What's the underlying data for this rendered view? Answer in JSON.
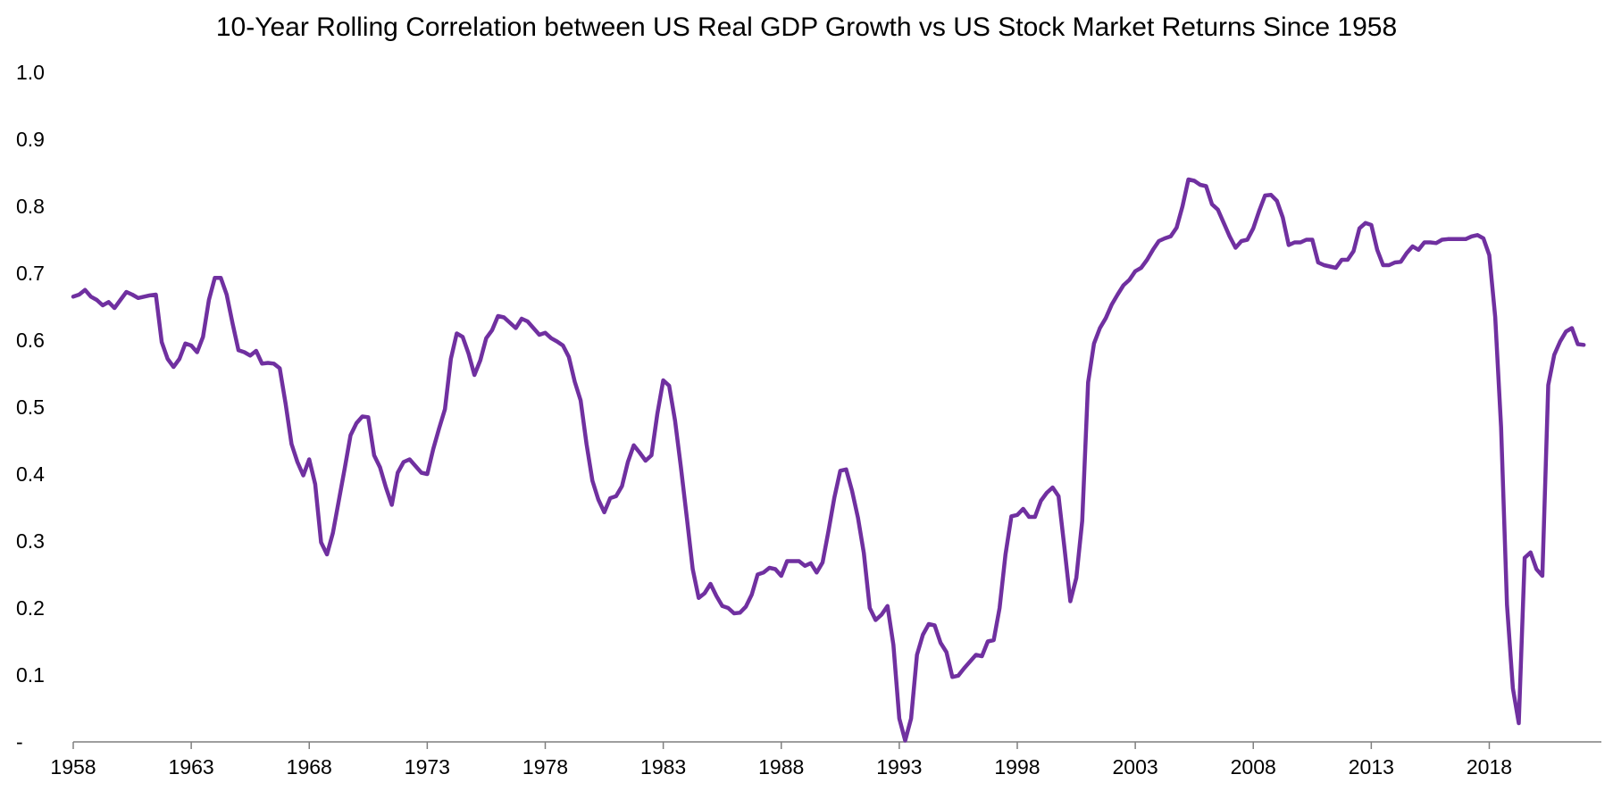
{
  "chart_data": {
    "type": "line",
    "title": "10-Year Rolling Correlation between US Real GDP Growth vs US Stock Market Returns Since 1958",
    "xlabel": "",
    "ylabel": "",
    "xlim": [
      1958,
      2022.75
    ],
    "ylim": [
      0,
      1
    ],
    "y_ticks": [
      {
        "value": 0,
        "label": "-"
      },
      {
        "value": 0.1,
        "label": "0.1"
      },
      {
        "value": 0.2,
        "label": "0.2"
      },
      {
        "value": 0.3,
        "label": "0.3"
      },
      {
        "value": 0.4,
        "label": "0.4"
      },
      {
        "value": 0.5,
        "label": "0.5"
      },
      {
        "value": 0.6,
        "label": "0.6"
      },
      {
        "value": 0.7,
        "label": "0.7"
      },
      {
        "value": 0.8,
        "label": "0.8"
      },
      {
        "value": 0.9,
        "label": "0.9"
      },
      {
        "value": 1.0,
        "label": "1.0"
      }
    ],
    "x_ticks": [
      {
        "value": 1958,
        "label": "1958"
      },
      {
        "value": 1963,
        "label": "1963"
      },
      {
        "value": 1968,
        "label": "1968"
      },
      {
        "value": 1973,
        "label": "1973"
      },
      {
        "value": 1978,
        "label": "1978"
      },
      {
        "value": 1983,
        "label": "1983"
      },
      {
        "value": 1988,
        "label": "1988"
      },
      {
        "value": 1993,
        "label": "1993"
      },
      {
        "value": 1998,
        "label": "1998"
      },
      {
        "value": 2003,
        "label": "2003"
      },
      {
        "value": 2008,
        "label": "2008"
      },
      {
        "value": 2013,
        "label": "2013"
      },
      {
        "value": 2018,
        "label": "2018"
      }
    ],
    "grid": false,
    "legend": "none",
    "series": [
      {
        "color": "#7030A0",
        "points": [
          [
            1958.0,
            0.665
          ],
          [
            1958.25,
            0.668
          ],
          [
            1958.5,
            0.675
          ],
          [
            1958.75,
            0.665
          ],
          [
            1959.0,
            0.66
          ],
          [
            1959.25,
            0.652
          ],
          [
            1959.5,
            0.657
          ],
          [
            1959.75,
            0.648
          ],
          [
            1960.0,
            0.66
          ],
          [
            1960.25,
            0.672
          ],
          [
            1960.5,
            0.668
          ],
          [
            1960.75,
            0.663
          ],
          [
            1961.0,
            0.665
          ],
          [
            1961.25,
            0.667
          ],
          [
            1961.5,
            0.668
          ],
          [
            1961.75,
            0.597
          ],
          [
            1962.0,
            0.572
          ],
          [
            1962.25,
            0.56
          ],
          [
            1962.5,
            0.572
          ],
          [
            1962.75,
            0.595
          ],
          [
            1963.0,
            0.592
          ],
          [
            1963.25,
            0.582
          ],
          [
            1963.5,
            0.605
          ],
          [
            1963.75,
            0.66
          ],
          [
            1964.0,
            0.693
          ],
          [
            1964.25,
            0.693
          ],
          [
            1964.5,
            0.668
          ],
          [
            1964.75,
            0.625
          ],
          [
            1965.0,
            0.585
          ],
          [
            1965.25,
            0.582
          ],
          [
            1965.5,
            0.577
          ],
          [
            1965.75,
            0.584
          ],
          [
            1966.0,
            0.565
          ],
          [
            1966.25,
            0.566
          ],
          [
            1966.5,
            0.565
          ],
          [
            1966.75,
            0.558
          ],
          [
            1967.0,
            0.505
          ],
          [
            1967.25,
            0.445
          ],
          [
            1967.5,
            0.418
          ],
          [
            1967.75,
            0.398
          ],
          [
            1968.0,
            0.422
          ],
          [
            1968.25,
            0.385
          ],
          [
            1968.5,
            0.298
          ],
          [
            1968.75,
            0.28
          ],
          [
            1969.0,
            0.312
          ],
          [
            1969.25,
            0.36
          ],
          [
            1969.5,
            0.408
          ],
          [
            1969.75,
            0.458
          ],
          [
            1970.0,
            0.476
          ],
          [
            1970.25,
            0.486
          ],
          [
            1970.5,
            0.485
          ],
          [
            1970.75,
            0.428
          ],
          [
            1971.0,
            0.41
          ],
          [
            1971.25,
            0.38
          ],
          [
            1971.5,
            0.354
          ],
          [
            1971.75,
            0.402
          ],
          [
            1972.0,
            0.418
          ],
          [
            1972.25,
            0.422
          ],
          [
            1972.5,
            0.412
          ],
          [
            1972.75,
            0.402
          ],
          [
            1973.0,
            0.4
          ],
          [
            1973.25,
            0.437
          ],
          [
            1973.5,
            0.468
          ],
          [
            1973.75,
            0.497
          ],
          [
            1974.0,
            0.572
          ],
          [
            1974.25,
            0.61
          ],
          [
            1974.5,
            0.605
          ],
          [
            1974.75,
            0.58
          ],
          [
            1975.0,
            0.548
          ],
          [
            1975.25,
            0.57
          ],
          [
            1975.5,
            0.603
          ],
          [
            1975.75,
            0.615
          ],
          [
            1976.0,
            0.636
          ],
          [
            1976.25,
            0.634
          ],
          [
            1976.5,
            0.626
          ],
          [
            1976.75,
            0.618
          ],
          [
            1977.0,
            0.632
          ],
          [
            1977.25,
            0.628
          ],
          [
            1977.5,
            0.618
          ],
          [
            1977.75,
            0.608
          ],
          [
            1978.0,
            0.611
          ],
          [
            1978.25,
            0.603
          ],
          [
            1978.5,
            0.598
          ],
          [
            1978.75,
            0.592
          ],
          [
            1979.0,
            0.575
          ],
          [
            1979.25,
            0.538
          ],
          [
            1979.5,
            0.51
          ],
          [
            1979.75,
            0.445
          ],
          [
            1980.0,
            0.39
          ],
          [
            1980.25,
            0.362
          ],
          [
            1980.5,
            0.343
          ],
          [
            1980.75,
            0.364
          ],
          [
            1981.0,
            0.367
          ],
          [
            1981.25,
            0.382
          ],
          [
            1981.5,
            0.418
          ],
          [
            1981.75,
            0.443
          ],
          [
            1982.0,
            0.432
          ],
          [
            1982.25,
            0.42
          ],
          [
            1982.5,
            0.428
          ],
          [
            1982.75,
            0.49
          ],
          [
            1983.0,
            0.54
          ],
          [
            1983.25,
            0.532
          ],
          [
            1983.5,
            0.48
          ],
          [
            1983.75,
            0.41
          ],
          [
            1984.0,
            0.335
          ],
          [
            1984.25,
            0.258
          ],
          [
            1984.5,
            0.215
          ],
          [
            1984.75,
            0.222
          ],
          [
            1985.0,
            0.236
          ],
          [
            1985.25,
            0.218
          ],
          [
            1985.5,
            0.203
          ],
          [
            1985.75,
            0.2
          ],
          [
            1986.0,
            0.192
          ],
          [
            1986.25,
            0.193
          ],
          [
            1986.5,
            0.202
          ],
          [
            1986.75,
            0.22
          ],
          [
            1987.0,
            0.25
          ],
          [
            1987.25,
            0.253
          ],
          [
            1987.5,
            0.26
          ],
          [
            1987.75,
            0.258
          ],
          [
            1988.0,
            0.248
          ],
          [
            1988.25,
            0.27
          ],
          [
            1988.5,
            0.27
          ],
          [
            1988.75,
            0.27
          ],
          [
            1989.0,
            0.263
          ],
          [
            1989.25,
            0.267
          ],
          [
            1989.5,
            0.253
          ],
          [
            1989.75,
            0.268
          ],
          [
            1990.0,
            0.315
          ],
          [
            1990.25,
            0.365
          ],
          [
            1990.5,
            0.405
          ],
          [
            1990.75,
            0.407
          ],
          [
            1991.0,
            0.375
          ],
          [
            1991.25,
            0.335
          ],
          [
            1991.5,
            0.282
          ],
          [
            1991.75,
            0.2
          ],
          [
            1992.0,
            0.182
          ],
          [
            1992.25,
            0.19
          ],
          [
            1992.5,
            0.203
          ],
          [
            1992.75,
            0.145
          ],
          [
            1993.0,
            0.035
          ],
          [
            1993.25,
            0.002
          ],
          [
            1993.5,
            0.035
          ],
          [
            1993.75,
            0.13
          ],
          [
            1994.0,
            0.16
          ],
          [
            1994.25,
            0.176
          ],
          [
            1994.5,
            0.174
          ],
          [
            1994.75,
            0.148
          ],
          [
            1995.0,
            0.134
          ],
          [
            1995.25,
            0.097
          ],
          [
            1995.5,
            0.099
          ],
          [
            1995.75,
            0.11
          ],
          [
            1996.0,
            0.12
          ],
          [
            1996.25,
            0.13
          ],
          [
            1996.5,
            0.128
          ],
          [
            1996.75,
            0.15
          ],
          [
            1997.0,
            0.152
          ],
          [
            1997.25,
            0.2
          ],
          [
            1997.5,
            0.28
          ],
          [
            1997.75,
            0.337
          ],
          [
            1998.0,
            0.339
          ],
          [
            1998.25,
            0.348
          ],
          [
            1998.5,
            0.336
          ],
          [
            1998.75,
            0.336
          ],
          [
            1999.0,
            0.36
          ],
          [
            1999.25,
            0.372
          ],
          [
            1999.5,
            0.38
          ],
          [
            1999.75,
            0.367
          ],
          [
            2000.0,
            0.29
          ],
          [
            2000.25,
            0.21
          ],
          [
            2000.5,
            0.245
          ],
          [
            2000.75,
            0.33
          ],
          [
            2001.0,
            0.537
          ],
          [
            2001.25,
            0.595
          ],
          [
            2001.5,
            0.618
          ],
          [
            2001.75,
            0.633
          ],
          [
            2002.0,
            0.653
          ],
          [
            2002.25,
            0.668
          ],
          [
            2002.5,
            0.682
          ],
          [
            2002.75,
            0.69
          ],
          [
            2003.0,
            0.703
          ],
          [
            2003.25,
            0.708
          ],
          [
            2003.5,
            0.72
          ],
          [
            2003.75,
            0.735
          ],
          [
            2004.0,
            0.748
          ],
          [
            2004.25,
            0.752
          ],
          [
            2004.5,
            0.755
          ],
          [
            2004.75,
            0.768
          ],
          [
            2005.0,
            0.8
          ],
          [
            2005.25,
            0.84
          ],
          [
            2005.5,
            0.838
          ],
          [
            2005.75,
            0.832
          ],
          [
            2006.0,
            0.83
          ],
          [
            2006.25,
            0.803
          ],
          [
            2006.5,
            0.795
          ],
          [
            2006.75,
            0.775
          ],
          [
            2007.0,
            0.755
          ],
          [
            2007.25,
            0.738
          ],
          [
            2007.5,
            0.748
          ],
          [
            2007.75,
            0.75
          ],
          [
            2008.0,
            0.767
          ],
          [
            2008.25,
            0.793
          ],
          [
            2008.5,
            0.816
          ],
          [
            2008.75,
            0.817
          ],
          [
            2009.0,
            0.808
          ],
          [
            2009.25,
            0.783
          ],
          [
            2009.5,
            0.742
          ],
          [
            2009.75,
            0.746
          ],
          [
            2010.0,
            0.746
          ],
          [
            2010.25,
            0.75
          ],
          [
            2010.5,
            0.75
          ],
          [
            2010.75,
            0.716
          ],
          [
            2011.0,
            0.712
          ],
          [
            2011.25,
            0.71
          ],
          [
            2011.5,
            0.708
          ],
          [
            2011.75,
            0.72
          ],
          [
            2012.0,
            0.72
          ],
          [
            2012.25,
            0.733
          ],
          [
            2012.5,
            0.767
          ],
          [
            2012.75,
            0.775
          ],
          [
            2013.0,
            0.772
          ],
          [
            2013.25,
            0.735
          ],
          [
            2013.5,
            0.712
          ],
          [
            2013.75,
            0.712
          ],
          [
            2014.0,
            0.716
          ],
          [
            2014.25,
            0.717
          ],
          [
            2014.5,
            0.73
          ],
          [
            2014.75,
            0.74
          ],
          [
            2015.0,
            0.735
          ],
          [
            2015.25,
            0.746
          ],
          [
            2015.5,
            0.746
          ],
          [
            2015.75,
            0.745
          ],
          [
            2016.0,
            0.75
          ],
          [
            2016.25,
            0.751
          ],
          [
            2016.5,
            0.751
          ],
          [
            2016.75,
            0.751
          ],
          [
            2017.0,
            0.751
          ],
          [
            2017.25,
            0.755
          ],
          [
            2017.5,
            0.757
          ],
          [
            2017.75,
            0.752
          ],
          [
            2018.0,
            0.727
          ],
          [
            2018.25,
            0.635
          ],
          [
            2018.5,
            0.47
          ],
          [
            2018.75,
            0.205
          ],
          [
            2019.0,
            0.08
          ],
          [
            2019.25,
            0.028
          ],
          [
            2019.5,
            0.275
          ],
          [
            2019.75,
            0.283
          ],
          [
            2020.0,
            0.258
          ],
          [
            2020.25,
            0.248
          ],
          [
            2020.5,
            0.533
          ],
          [
            2020.75,
            0.578
          ],
          [
            2021.0,
            0.598
          ],
          [
            2021.25,
            0.613
          ],
          [
            2021.5,
            0.618
          ],
          [
            2021.75,
            0.594
          ],
          [
            2022.0,
            0.593
          ]
        ]
      }
    ]
  }
}
